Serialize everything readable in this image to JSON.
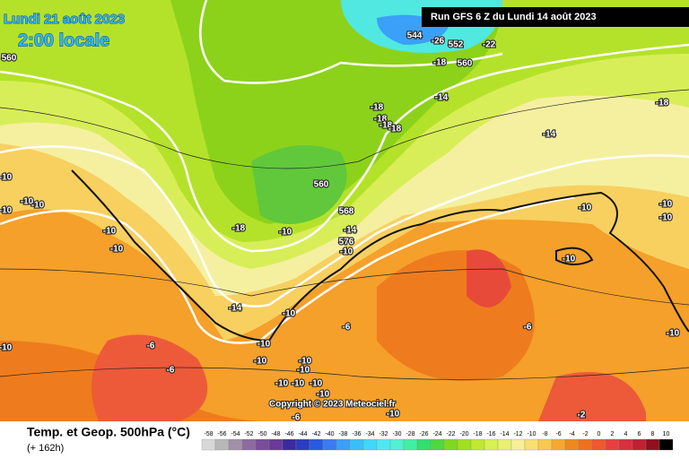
{
  "header": {
    "date": "Lundi 21 août 2023",
    "time": "2:00 locale",
    "run": "Run GFS 6 Z du Lundi 14 août 2023"
  },
  "footer": {
    "title": "Temp. et Geop. 500hPa (°C)",
    "lead": "(+ 162h)",
    "copyright": "Copyright © 2023 Meteociel.fr"
  },
  "map": {
    "labels": [
      560,
      544,
      -26,
      552,
      -22,
      -18,
      560,
      -14,
      -18,
      -18,
      -18,
      -18,
      -18,
      -14,
      560,
      568,
      -14,
      576,
      -10,
      -10,
      -10,
      -10,
      -18,
      -10,
      -10,
      -10,
      -10,
      -10,
      -10,
      -10,
      -14,
      -10,
      -10,
      -6,
      -6,
      -6,
      -10,
      -10,
      -10,
      -10,
      -10,
      -10,
      -10,
      -10,
      -10,
      -6,
      -6,
      -2,
      -10,
      -10
    ]
  },
  "scale": {
    "values": [
      -58,
      -56,
      -54,
      -52,
      -50,
      -48,
      -46,
      -44,
      -42,
      -40,
      -38,
      -36,
      -34,
      -32,
      -30,
      -28,
      -26,
      -24,
      -22,
      -20,
      -18,
      -16,
      -14,
      -12,
      -10,
      -8,
      -6,
      -4,
      -2,
      0,
      2,
      4,
      6,
      8,
      10
    ],
    "colors": [
      "#d8d8d8",
      "#b8b8b8",
      "#a090a8",
      "#8c6ca0",
      "#7a4c9a",
      "#6a3a98",
      "#3a2aa0",
      "#2a3cc0",
      "#2a5ae0",
      "#3a7cf0",
      "#3aa0f8",
      "#3ac0f8",
      "#40d8f8",
      "#50e8f0",
      "#50f0d0",
      "#40f0a0",
      "#30e070",
      "#50d840",
      "#80d820",
      "#a0e020",
      "#c0e830",
      "#d8f050",
      "#e8f070",
      "#f8f098",
      "#f8e070",
      "#f8c850",
      "#f8a830",
      "#f08820",
      "#f07020",
      "#f05830",
      "#e84040",
      "#d83040",
      "#c02030",
      "#901020",
      "#000000"
    ]
  }
}
